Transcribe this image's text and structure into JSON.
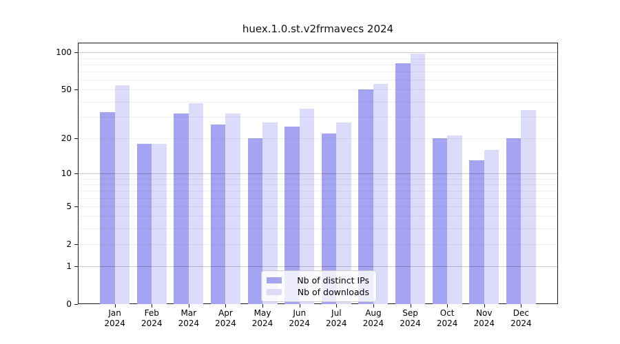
{
  "title": "huex.1.0.st.v2frmavecs 2024",
  "chart_data": {
    "type": "bar",
    "title": "huex.1.0.st.v2frmavecs 2024",
    "scale": "log1p",
    "categories": [
      "Jan",
      "Feb",
      "Mar",
      "Apr",
      "May",
      "Jun",
      "Jul",
      "Aug",
      "Sep",
      "Oct",
      "Nov",
      "Dec"
    ],
    "year": "2024",
    "series": [
      {
        "name": "Nb of distinct IPs",
        "color": "#a4a4f2",
        "values": [
          33,
          18,
          32,
          26,
          20,
          25,
          22,
          50,
          82,
          20,
          13,
          20
        ]
      },
      {
        "name": "Nb of downloads",
        "color": "#dcdcfa",
        "values": [
          54,
          18,
          39,
          32,
          27,
          35,
          27,
          56,
          98,
          21,
          16,
          34
        ]
      }
    ],
    "xlabel": "",
    "ylabel": "",
    "ylim": [
      0,
      120
    ],
    "yticks": [
      0,
      1,
      2,
      5,
      10,
      20,
      50,
      100
    ],
    "grid": {
      "major": [
        1,
        10,
        100
      ],
      "minor": [
        2,
        3,
        4,
        5,
        6,
        7,
        8,
        9,
        20,
        30,
        40,
        50,
        60,
        70,
        80,
        90
      ]
    },
    "legend_position": "bottom-center"
  }
}
